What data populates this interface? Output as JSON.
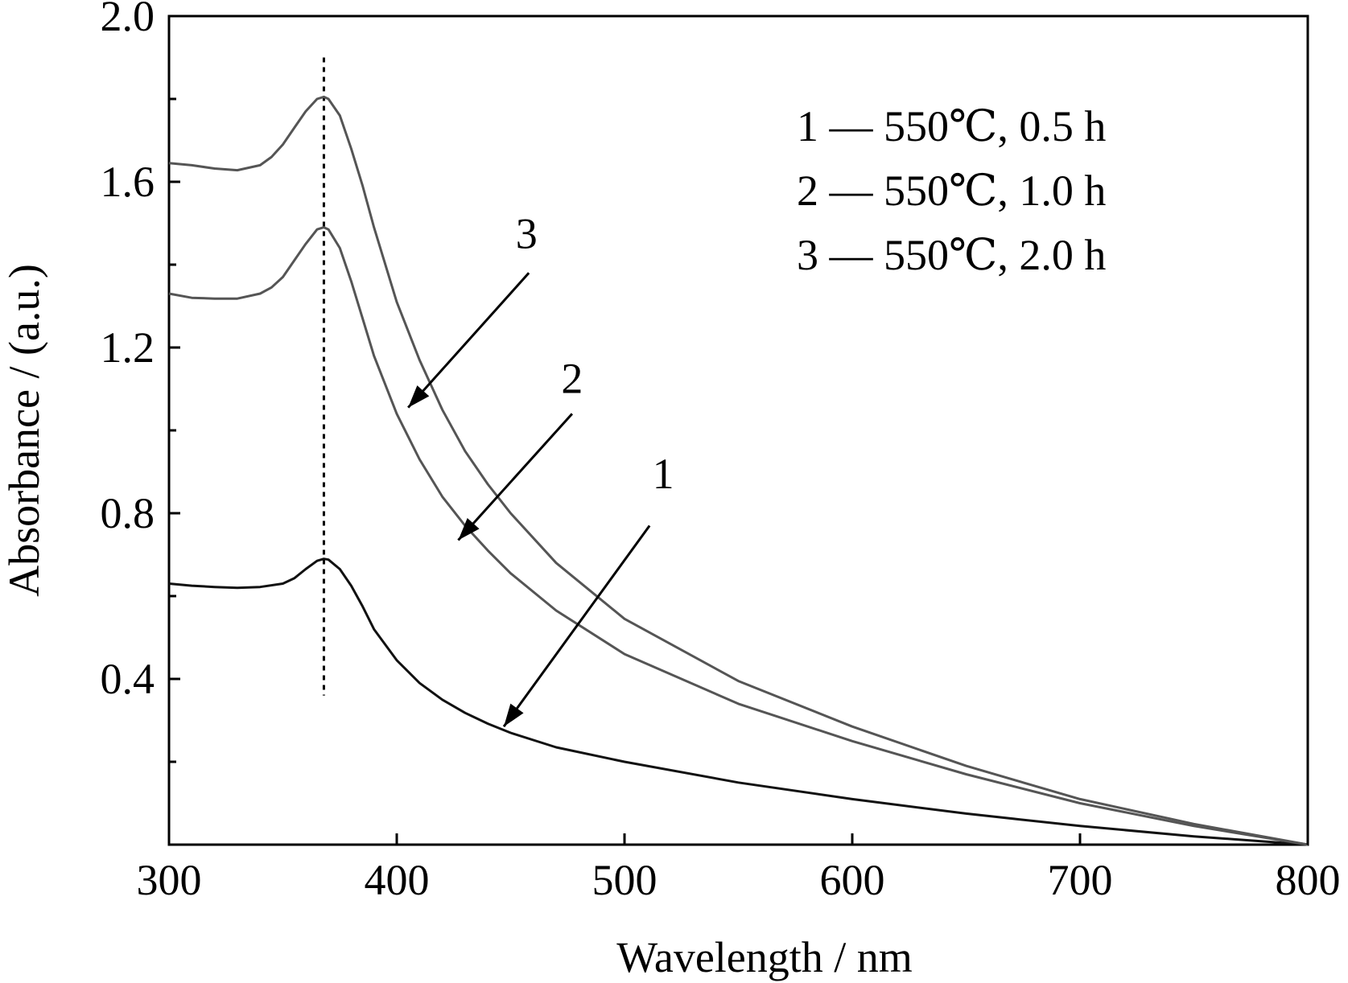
{
  "chart_data": {
    "type": "line",
    "title": "",
    "xlabel": "Wavelength / nm",
    "ylabel": "Absorbance / (a.u.)",
    "xlim": [
      300,
      800
    ],
    "ylim": [
      0.0,
      2.0
    ],
    "x_ticks": [
      300,
      400,
      500,
      600,
      700,
      800
    ],
    "y_ticks": [
      0.4,
      0.8,
      1.2,
      1.6,
      2.0
    ],
    "y_tick_labels": [
      "0.4",
      "0.8",
      "1.2",
      "1.6",
      "2.0"
    ],
    "x_tick_labels": [
      "300",
      "400",
      "500",
      "600",
      "700",
      "800"
    ],
    "y_minor_ticks": [
      0.2,
      0.6,
      1.0,
      1.4,
      1.8
    ],
    "grid": false,
    "legend_position": "top-right",
    "reference_line_x": 368,
    "colors": {
      "series1": "#111111",
      "series2": "#555555",
      "series3": "#555555",
      "arrow": "#000000"
    },
    "series": [
      {
        "name": "1 — 550℃, 0.5 h",
        "label": "1",
        "label_at": [
          517,
          0.86
        ],
        "arrow_from": [
          511,
          0.77
        ],
        "arrow_to": [
          447,
          0.285
        ],
        "x": [
          300,
          310,
          320,
          330,
          340,
          350,
          355,
          360,
          365,
          368,
          370,
          375,
          380,
          385,
          390,
          400,
          410,
          420,
          430,
          440,
          450,
          470,
          500,
          550,
          600,
          650,
          700,
          750,
          800
        ],
        "y": [
          0.63,
          0.625,
          0.622,
          0.62,
          0.622,
          0.63,
          0.643,
          0.665,
          0.685,
          0.69,
          0.688,
          0.665,
          0.625,
          0.575,
          0.52,
          0.445,
          0.39,
          0.35,
          0.318,
          0.292,
          0.27,
          0.235,
          0.2,
          0.15,
          0.11,
          0.075,
          0.045,
          0.02,
          0.0
        ]
      },
      {
        "name": "2 — 550℃, 1.0 h",
        "label": "2",
        "label_at": [
          477,
          1.09
        ],
        "arrow_from": [
          477,
          1.04
        ],
        "arrow_to": [
          427,
          0.735
        ],
        "x": [
          300,
          310,
          320,
          330,
          340,
          345,
          350,
          355,
          360,
          365,
          368,
          370,
          375,
          380,
          385,
          390,
          400,
          410,
          420,
          430,
          440,
          450,
          470,
          500,
          550,
          600,
          650,
          700,
          750,
          800
        ],
        "y": [
          1.33,
          1.32,
          1.318,
          1.318,
          1.33,
          1.345,
          1.37,
          1.41,
          1.45,
          1.485,
          1.49,
          1.485,
          1.44,
          1.36,
          1.27,
          1.18,
          1.04,
          0.93,
          0.84,
          0.77,
          0.71,
          0.655,
          0.565,
          0.46,
          0.34,
          0.25,
          0.17,
          0.1,
          0.045,
          0.0
        ]
      },
      {
        "name": "3 — 550℃, 2.0 h",
        "label": "3",
        "label_at": [
          457,
          1.44
        ],
        "arrow_from": [
          458,
          1.38
        ],
        "arrow_to": [
          405,
          1.055
        ],
        "x": [
          300,
          310,
          320,
          330,
          340,
          345,
          350,
          355,
          360,
          365,
          368,
          370,
          375,
          380,
          385,
          390,
          400,
          410,
          420,
          430,
          440,
          450,
          470,
          500,
          550,
          600,
          650,
          700,
          750,
          800
        ],
        "y": [
          1.645,
          1.64,
          1.632,
          1.628,
          1.64,
          1.66,
          1.69,
          1.73,
          1.77,
          1.8,
          1.805,
          1.8,
          1.76,
          1.68,
          1.59,
          1.49,
          1.31,
          1.17,
          1.05,
          0.95,
          0.87,
          0.8,
          0.68,
          0.545,
          0.395,
          0.285,
          0.19,
          0.11,
          0.05,
          0.0
        ]
      }
    ]
  }
}
